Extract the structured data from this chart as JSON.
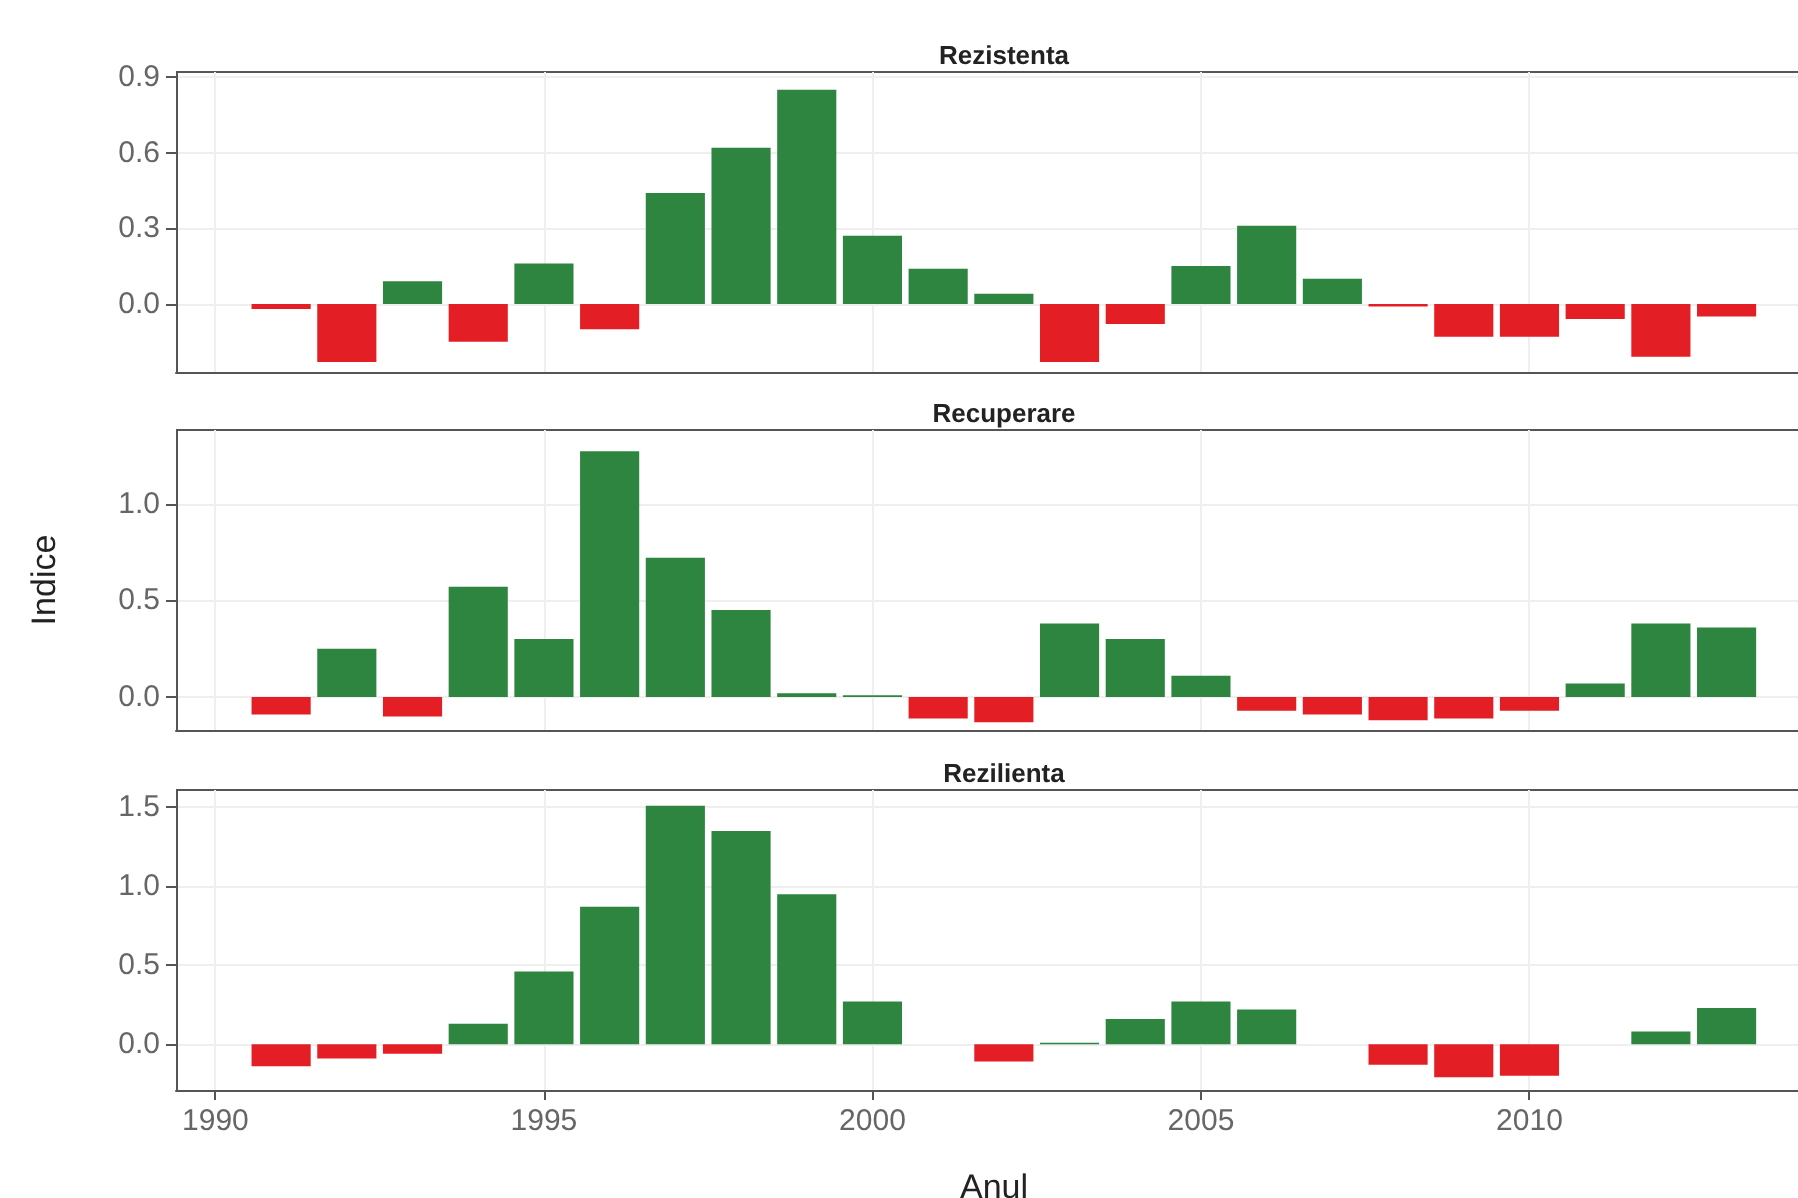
{
  "chart_data": [
    {
      "type": "bar",
      "title": "Rezistenta",
      "x": [
        1991,
        1992,
        1993,
        1994,
        1995,
        1996,
        1997,
        1998,
        1999,
        2000,
        2001,
        2002,
        2003,
        2004,
        2005,
        2006,
        2007,
        2008,
        2009,
        2010,
        2011,
        2012,
        2013
      ],
      "values": [
        -0.02,
        -0.23,
        0.09,
        -0.15,
        0.16,
        -0.1,
        0.44,
        0.62,
        0.85,
        0.27,
        0.14,
        0.04,
        -0.23,
        -0.08,
        0.15,
        0.31,
        0.1,
        -0.01,
        -0.13,
        -0.13,
        -0.06,
        -0.21,
        -0.05
      ],
      "colors": [
        "#e31e24",
        "#e31e24",
        "#2e8540",
        "#e31e24",
        "#2e8540",
        "#e31e24",
        "#2e8540",
        "#2e8540",
        "#2e8540",
        "#2e8540",
        "#2e8540",
        "#2e8540",
        "#e31e24",
        "#e31e24",
        "#2e8540",
        "#2e8540",
        "#2e8540",
        "#e31e24",
        "#e31e24",
        "#e31e24",
        "#e31e24",
        "#e31e24",
        "#e31e24"
      ],
      "xlim": [
        1989.4,
        2014.3
      ],
      "xticks": [
        1990,
        1995,
        2000,
        2005,
        2010
      ],
      "ylim": [
        -0.27,
        0.92
      ],
      "yticks": [
        {
          "value": 0,
          "label": "0.0"
        },
        {
          "value": 0.3,
          "label": "0.3"
        },
        {
          "value": 0.6,
          "label": "0.6"
        },
        {
          "value": 0.9,
          "label": "0.9"
        }
      ],
      "grid": true,
      "tick_labels": "y"
    },
    {
      "type": "bar",
      "title": "Recuperare",
      "ylabel": "Indice",
      "x": [
        1991,
        1992,
        1993,
        1994,
        1995,
        1996,
        1997,
        1998,
        1999,
        2000,
        2001,
        2002,
        2003,
        2004,
        2005,
        2006,
        2007,
        2008,
        2009,
        2010,
        2011,
        2012,
        2013
      ],
      "values": [
        -0.09,
        0.25,
        -0.1,
        0.57,
        0.3,
        1.27,
        0.72,
        0.45,
        0.02,
        0.01,
        -0.11,
        -0.13,
        0.38,
        0.3,
        0.11,
        -0.07,
        -0.09,
        -0.12,
        -0.11,
        -0.07,
        0.07,
        0.38,
        0.36
      ],
      "colors": [
        "#e31e24",
        "#2e8540",
        "#e31e24",
        "#2e8540",
        "#2e8540",
        "#2e8540",
        "#2e8540",
        "#2e8540",
        "#2e8540",
        "#2e8540",
        "#e31e24",
        "#e31e24",
        "#2e8540",
        "#2e8540",
        "#2e8540",
        "#e31e24",
        "#e31e24",
        "#e31e24",
        "#e31e24",
        "#e31e24",
        "#2e8540",
        "#2e8540",
        "#2e8540"
      ],
      "xlim": [
        1989.4,
        2014.3
      ],
      "xticks": [
        1990,
        1995,
        2000,
        2005,
        2010
      ],
      "ylim": [
        -0.17,
        1.38
      ],
      "yticks": [
        {
          "value": 0,
          "label": "0.0"
        },
        {
          "value": 0.5,
          "label": "0.5"
        },
        {
          "value": 1,
          "label": "1.0"
        }
      ],
      "grid": true,
      "tick_labels": "y"
    },
    {
      "type": "bar",
      "title": "Rezilienta",
      "xlabel": "Anul",
      "x": [
        1991,
        1992,
        1993,
        1994,
        1995,
        1996,
        1997,
        1998,
        1999,
        2000,
        2001,
        2002,
        2003,
        2004,
        2005,
        2006,
        2007,
        2008,
        2009,
        2010,
        2011,
        2012,
        2013
      ],
      "values": [
        -0.14,
        -0.09,
        -0.06,
        0.13,
        0.46,
        0.87,
        1.51,
        1.35,
        0.95,
        0.27,
        null,
        -0.11,
        0.01,
        0.16,
        0.27,
        0.22,
        null,
        -0.13,
        -0.21,
        -0.2,
        null,
        0.08,
        0.23
      ],
      "colors": [
        "#e31e24",
        "#e31e24",
        "#e31e24",
        "#2e8540",
        "#2e8540",
        "#2e8540",
        "#2e8540",
        "#2e8540",
        "#2e8540",
        "#2e8540",
        "#2e8540",
        "#e31e24",
        "#2e8540",
        "#2e8540",
        "#2e8540",
        "#2e8540",
        "#2e8540",
        "#e31e24",
        "#e31e24",
        "#e31e24",
        "#2e8540",
        "#2e8540",
        "#2e8540"
      ],
      "xlim": [
        1989.4,
        2014.3
      ],
      "xticks": [
        1990,
        1995,
        2000,
        2005,
        2010
      ],
      "ylim": [
        -0.29,
        1.61
      ],
      "yticks": [
        {
          "value": 0,
          "label": "0.0"
        },
        {
          "value": 0.5,
          "label": "0.5"
        },
        {
          "value": 1,
          "label": "1.0"
        },
        {
          "value": 1.5,
          "label": "1.5"
        }
      ],
      "grid": true
    }
  ]
}
